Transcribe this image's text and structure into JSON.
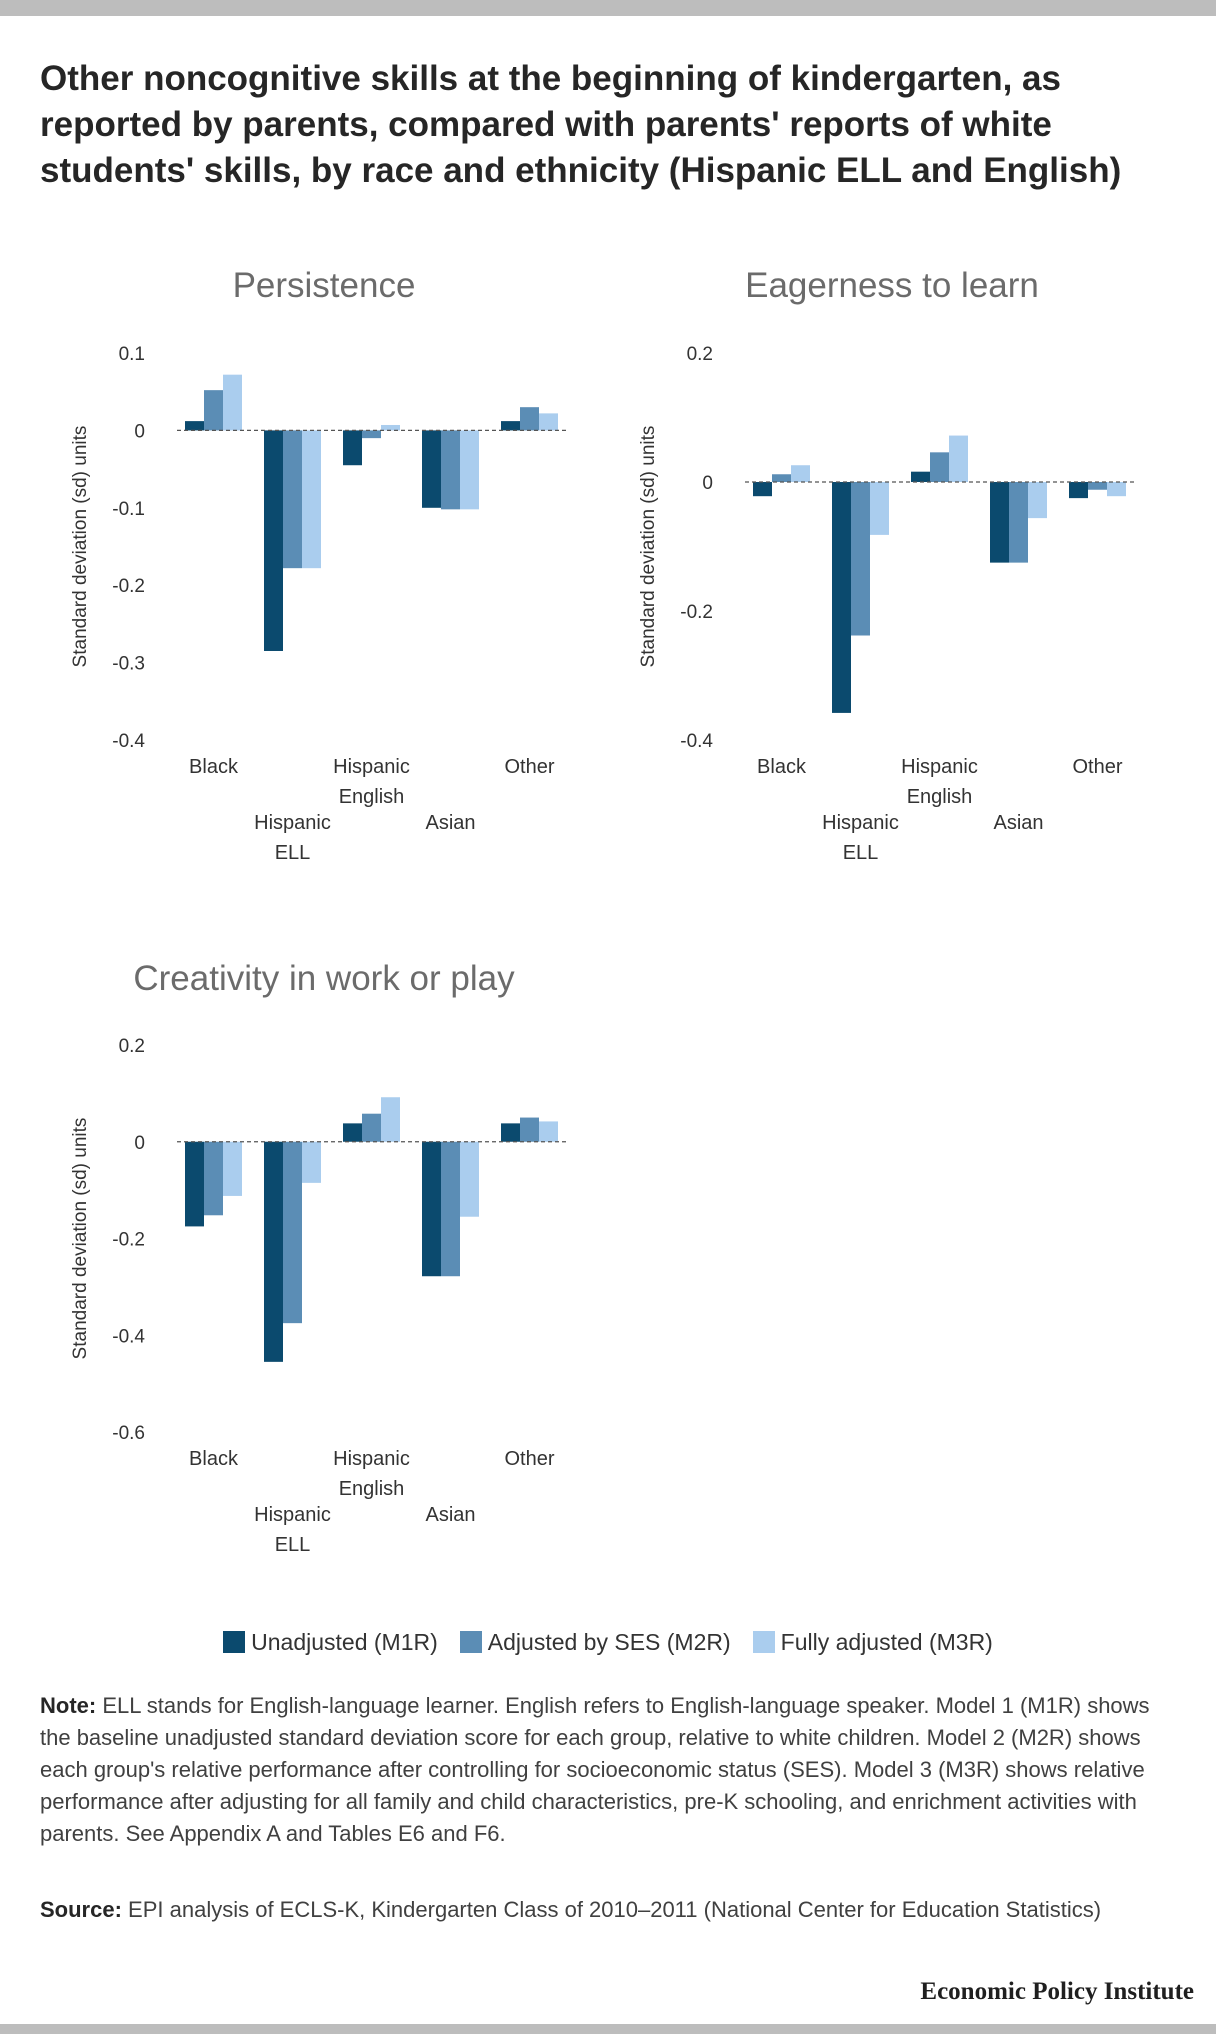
{
  "title": "Other noncognitive skills at the beginning of kindergarten, as reported by parents, compared with parents' reports of white students' skills, by race and ethnicity (Hispanic ELL and English)",
  "legend": [
    {
      "label": "Unadjusted (M1R)",
      "color": "#0b4a6e"
    },
    {
      "label": "Adjusted by SES (M2R)",
      "color": "#5b8db5"
    },
    {
      "label": "Fully adjusted (M3R)",
      "color": "#aacdee"
    }
  ],
  "chart_data": [
    {
      "type": "bar",
      "title": "Persistence",
      "ylabel": "Standard deviation (sd) units",
      "ylim": [
        -0.4,
        0.1
      ],
      "yticks": [
        "0.1",
        "0",
        "-0.1",
        "-0.2",
        "-0.3",
        "-0.4"
      ],
      "categories": [
        [
          "Black"
        ],
        [
          "Hispanic",
          "ELL"
        ],
        [
          "Hispanic",
          "English"
        ],
        [
          "Asian"
        ],
        [
          "Other"
        ]
      ],
      "series": [
        {
          "name": "Unadjusted (M1R)",
          "values": [
            0.012,
            -0.285,
            -0.045,
            -0.1,
            0.012
          ]
        },
        {
          "name": "Adjusted by SES (M2R)",
          "values": [
            0.052,
            -0.178,
            -0.01,
            -0.102,
            0.03
          ]
        },
        {
          "name": "Fully adjusted (M3R)",
          "values": [
            0.072,
            -0.178,
            0.007,
            -0.102,
            0.022
          ]
        }
      ]
    },
    {
      "type": "bar",
      "title": "Eagerness to learn",
      "ylabel": "Standard deviation (sd) units",
      "ylim": [
        -0.4,
        0.2
      ],
      "yticks": [
        "0.2",
        "0",
        "-0.2",
        "-0.4"
      ],
      "categories": [
        [
          "Black"
        ],
        [
          "Hispanic",
          "ELL"
        ],
        [
          "Hispanic",
          "English"
        ],
        [
          "Asian"
        ],
        [
          "Other"
        ]
      ],
      "series": [
        {
          "name": "Unadjusted (M1R)",
          "values": [
            -0.022,
            -0.358,
            0.016,
            -0.125,
            -0.025
          ]
        },
        {
          "name": "Adjusted by SES (M2R)",
          "values": [
            0.012,
            -0.238,
            0.046,
            -0.125,
            -0.012
          ]
        },
        {
          "name": "Fully adjusted (M3R)",
          "values": [
            0.026,
            -0.082,
            0.072,
            -0.056,
            -0.022
          ]
        }
      ]
    },
    {
      "type": "bar",
      "title": "Creativity in work or play",
      "ylabel": "Standard deviation (sd) units",
      "ylim": [
        -0.6,
        0.2
      ],
      "yticks": [
        "0.2",
        "0",
        "-0.2",
        "-0.4",
        "-0.6"
      ],
      "categories": [
        [
          "Black"
        ],
        [
          "Hispanic",
          "ELL"
        ],
        [
          "Hispanic",
          "English"
        ],
        [
          "Asian"
        ],
        [
          "Other"
        ]
      ],
      "series": [
        {
          "name": "Unadjusted (M1R)",
          "values": [
            -0.175,
            -0.455,
            0.038,
            -0.278,
            0.038
          ]
        },
        {
          "name": "Adjusted by SES (M2R)",
          "values": [
            -0.152,
            -0.375,
            0.058,
            -0.278,
            0.05
          ]
        },
        {
          "name": "Fully adjusted (M3R)",
          "values": [
            -0.112,
            -0.085,
            0.092,
            -0.155,
            0.042
          ]
        }
      ]
    }
  ],
  "note": {
    "label": "Note:",
    "text": "ELL stands for English-language learner. English refers to English-language speaker. Model 1 (M1R) shows the baseline unadjusted standard deviation score for each group, relative to white children. Model 2 (M2R) shows each group's relative performance after controlling for socioeconomic status (SES). Model 3 (M3R) shows relative performance after adjusting for all family and child characteristics, pre-K schooling, and enrichment activities with parents. See Appendix A and Tables E6 and F6."
  },
  "source": {
    "label": "Source:",
    "text": "EPI analysis of ECLS-K, Kindergarten Class of 2010–2011 (National Center for Education Statistics)"
  },
  "brand": "Economic Policy Institute"
}
